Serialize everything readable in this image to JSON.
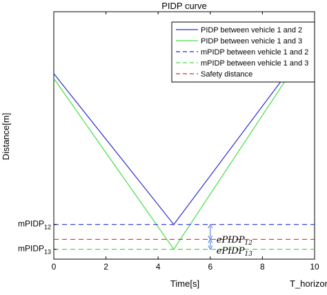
{
  "chart_data": {
    "type": "line",
    "title": "PIDP curve",
    "xlabel": "Time[s]",
    "ylabel": "Distance[m]",
    "x_end_label": "T_horizon",
    "xlim": [
      0,
      10
    ],
    "ylim": [
      0,
      100
    ],
    "xticks": [
      0,
      2,
      4,
      6,
      8,
      10
    ],
    "grid": false,
    "legend_position": "top-right",
    "y_tick_labels": [
      {
        "main": "mPIDP",
        "sub": "12",
        "value": 14
      },
      {
        "main": "mPIDP",
        "sub": "13",
        "value": 4
      }
    ],
    "series": [
      {
        "name": "PIDP between vehicle 1 and 2",
        "color": "#2b2bd0",
        "dash": "solid",
        "x": [
          0,
          4.6,
          10
        ],
        "y": [
          75,
          14,
          90
        ]
      },
      {
        "name": "PIDP between vehicle 1 and 3",
        "color": "#44dd44",
        "dash": "solid",
        "x": [
          0,
          4.6,
          10
        ],
        "y": [
          73,
          4,
          90
        ]
      },
      {
        "name": "mPIDP between vehicle 1 and 2",
        "color": "#2b2bd0",
        "dash": "dashed",
        "x": [
          0,
          10
        ],
        "y": [
          14,
          14
        ]
      },
      {
        "name": "mPIDP between vehicle 1 and 3",
        "color": "#44dd44",
        "dash": "dashed",
        "x": [
          0,
          10
        ],
        "y": [
          4,
          4
        ]
      },
      {
        "name": "Safety distance",
        "color": "#d03030",
        "dash": "dashed",
        "x": [
          0,
          10
        ],
        "y": [
          8,
          8
        ]
      }
    ],
    "annotations": [
      {
        "label": "ePIDP",
        "sub": "12",
        "x": 6,
        "y_from": 8,
        "y_to": 14
      },
      {
        "label": "ePIDP",
        "sub": "13",
        "x": 6,
        "y_from": 4,
        "y_to": 8
      }
    ]
  }
}
